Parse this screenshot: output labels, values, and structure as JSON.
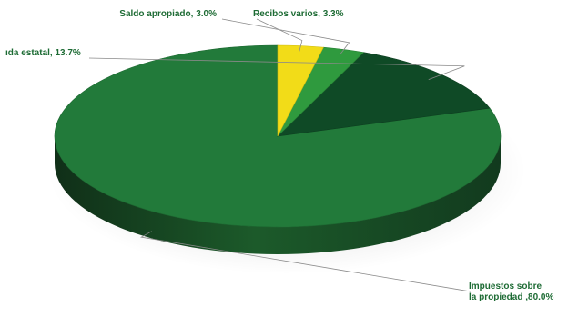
{
  "chart_data": {
    "type": "pie",
    "slices": [
      {
        "lines": [
          "Impuestos sobre",
          "la propiedad ,80.0%"
        ],
        "value": 80.0,
        "color": "#227a3a"
      },
      {
        "lines": [
          "ıda estatal, 13.7%"
        ],
        "value": 13.7,
        "color": "#0f4a26"
      },
      {
        "lines": [
          "Saldo apropiado, 3.0%"
        ],
        "value": 3.0,
        "color": "#2f9a3e"
      },
      {
        "lines": [
          "Recibos varios, 3.3%"
        ],
        "value": 3.3,
        "color": "#f2dc18"
      }
    ]
  }
}
